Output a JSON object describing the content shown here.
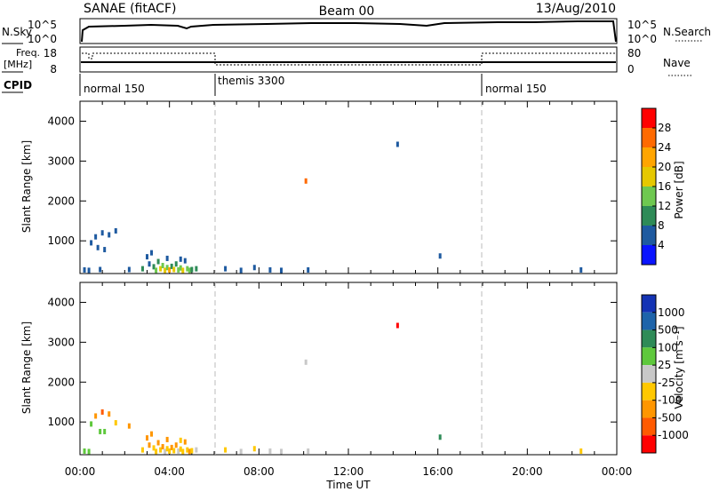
{
  "header": {
    "station": "SANAE (fitACF)",
    "beam": "Beam 00",
    "date": "13/Aug/2010"
  },
  "panels": {
    "nsky": {
      "label": "N.Sky",
      "ticks": [
        "10^5",
        "10^0"
      ],
      "right_label": "N.Search",
      "right_ticks": [
        "10^5",
        "10^0"
      ]
    },
    "freq": {
      "label_line1": "Freq.",
      "label_line2": "[MHz]",
      "ticks": [
        "18",
        "8"
      ],
      "right_label": "Nave",
      "right_ticks": [
        "80",
        "0"
      ]
    },
    "cpid": {
      "label": "CPID",
      "segments": [
        "normal 150",
        "themis 3300",
        "normal 150"
      ]
    }
  },
  "colorbars": {
    "power": {
      "label": "Power [dB]",
      "ticks": [
        "28",
        "24",
        "20",
        "16",
        "12",
        "8",
        "4"
      ],
      "colors": [
        "#ff0000",
        "#ff6a00",
        "#ffa500",
        "#e6c800",
        "#6ec850",
        "#2e8b57",
        "#1e5aa0",
        "#0a14ff"
      ]
    },
    "velocity": {
      "label": "Velocity [m s⁻¹]",
      "ticks": [
        "1000",
        "500",
        "100",
        "25",
        "-25",
        "-100",
        "-500",
        "-1000"
      ],
      "colors": [
        "#1433b4",
        "#1e64aa",
        "#2e8b57",
        "#5ec83c",
        "#c8c8c8",
        "#ffc800",
        "#ff9600",
        "#ff5a00",
        "#ff0000"
      ]
    }
  },
  "chart_data": [
    {
      "type": "heatmap",
      "name": "power",
      "ylabel": "Slant Range [km]",
      "yticks": [
        "4000",
        "3000",
        "2000",
        "1000"
      ],
      "ylim": [
        180,
        4500
      ],
      "xlim": [
        0,
        24
      ],
      "series": [
        {
          "name": "Power [dB]",
          "points": [
            {
              "x": 0.2,
              "y": 270,
              "v": 6
            },
            {
              "x": 0.4,
              "y": 260,
              "v": 6
            },
            {
              "x": 0.5,
              "y": 950,
              "v": 5
            },
            {
              "x": 0.7,
              "y": 1100,
              "v": 6
            },
            {
              "x": 0.8,
              "y": 830,
              "v": 5
            },
            {
              "x": 1.0,
              "y": 1200,
              "v": 6
            },
            {
              "x": 1.3,
              "y": 1150,
              "v": 5
            },
            {
              "x": 1.6,
              "y": 1250,
              "v": 6
            },
            {
              "x": 0.9,
              "y": 280,
              "v": 6
            },
            {
              "x": 1.1,
              "y": 780,
              "v": 6
            },
            {
              "x": 2.2,
              "y": 280,
              "v": 6
            },
            {
              "x": 2.8,
              "y": 300,
              "v": 8
            },
            {
              "x": 3.0,
              "y": 600,
              "v": 6
            },
            {
              "x": 3.1,
              "y": 420,
              "v": 7
            },
            {
              "x": 3.3,
              "y": 350,
              "v": 10
            },
            {
              "x": 3.4,
              "y": 260,
              "v": 14
            },
            {
              "x": 3.5,
              "y": 480,
              "v": 8
            },
            {
              "x": 3.6,
              "y": 300,
              "v": 16
            },
            {
              "x": 3.7,
              "y": 380,
              "v": 12
            },
            {
              "x": 3.8,
              "y": 260,
              "v": 18
            },
            {
              "x": 3.9,
              "y": 330,
              "v": 14
            },
            {
              "x": 4.0,
              "y": 270,
              "v": 20
            },
            {
              "x": 4.1,
              "y": 360,
              "v": 10
            },
            {
              "x": 4.2,
              "y": 280,
              "v": 16
            },
            {
              "x": 4.3,
              "y": 420,
              "v": 8
            },
            {
              "x": 4.4,
              "y": 270,
              "v": 14
            },
            {
              "x": 4.5,
              "y": 320,
              "v": 12
            },
            {
              "x": 4.6,
              "y": 260,
              "v": 18
            },
            {
              "x": 4.7,
              "y": 500,
              "v": 6
            },
            {
              "x": 4.8,
              "y": 300,
              "v": 14
            },
            {
              "x": 4.9,
              "y": 260,
              "v": 12
            },
            {
              "x": 5.0,
              "y": 280,
              "v": 10
            },
            {
              "x": 5.2,
              "y": 300,
              "v": 8
            },
            {
              "x": 3.2,
              "y": 700,
              "v": 6
            },
            {
              "x": 3.9,
              "y": 560,
              "v": 7
            },
            {
              "x": 4.5,
              "y": 540,
              "v": 6
            },
            {
              "x": 6.5,
              "y": 300,
              "v": 6
            },
            {
              "x": 7.2,
              "y": 260,
              "v": 6
            },
            {
              "x": 7.8,
              "y": 330,
              "v": 6
            },
            {
              "x": 8.5,
              "y": 270,
              "v": 6
            },
            {
              "x": 9.0,
              "y": 260,
              "v": 6
            },
            {
              "x": 10.1,
              "y": 2500,
              "v": 26
            },
            {
              "x": 10.2,
              "y": 270,
              "v": 6
            },
            {
              "x": 14.2,
              "y": 3420,
              "v": 5
            },
            {
              "x": 16.1,
              "y": 620,
              "v": 6
            },
            {
              "x": 22.4,
              "y": 270,
              "v": 6
            }
          ]
        }
      ]
    },
    {
      "type": "heatmap",
      "name": "velocity",
      "ylabel": "Slant Range [km]",
      "xlabel": "Time UT",
      "xticks": [
        "00:00",
        "04:00",
        "08:00",
        "12:00",
        "16:00",
        "20:00",
        "00:00"
      ],
      "yticks": [
        "4000",
        "3000",
        "2000",
        "1000"
      ],
      "ylim": [
        180,
        4500
      ],
      "xlim": [
        0,
        24
      ],
      "series": [
        {
          "name": "Velocity [m s⁻¹]",
          "points": [
            {
              "x": 0.2,
              "y": 270,
              "v": 50
            },
            {
              "x": 0.4,
              "y": 260,
              "v": 60
            },
            {
              "x": 0.5,
              "y": 950,
              "v": 60
            },
            {
              "x": 0.7,
              "y": 1150,
              "v": -300
            },
            {
              "x": 1.0,
              "y": 1250,
              "v": -600
            },
            {
              "x": 1.3,
              "y": 1200,
              "v": -300
            },
            {
              "x": 1.6,
              "y": 980,
              "v": -100
            },
            {
              "x": 0.9,
              "y": 760,
              "v": 50
            },
            {
              "x": 1.1,
              "y": 760,
              "v": 60
            },
            {
              "x": 2.2,
              "y": 900,
              "v": -200
            },
            {
              "x": 2.8,
              "y": 300,
              "v": -60
            },
            {
              "x": 3.0,
              "y": 600,
              "v": -300
            },
            {
              "x": 3.1,
              "y": 420,
              "v": -150
            },
            {
              "x": 3.3,
              "y": 350,
              "v": -80
            },
            {
              "x": 3.4,
              "y": 260,
              "v": -60
            },
            {
              "x": 3.5,
              "y": 480,
              "v": -300
            },
            {
              "x": 3.6,
              "y": 300,
              "v": -60
            },
            {
              "x": 3.7,
              "y": 380,
              "v": -150
            },
            {
              "x": 3.8,
              "y": 260,
              "v": 0
            },
            {
              "x": 3.9,
              "y": 330,
              "v": -60
            },
            {
              "x": 4.0,
              "y": 270,
              "v": -80
            },
            {
              "x": 4.1,
              "y": 360,
              "v": -300
            },
            {
              "x": 4.2,
              "y": 280,
              "v": -60
            },
            {
              "x": 4.3,
              "y": 420,
              "v": -150
            },
            {
              "x": 4.4,
              "y": 270,
              "v": 0
            },
            {
              "x": 4.5,
              "y": 320,
              "v": -60
            },
            {
              "x": 4.6,
              "y": 260,
              "v": -80
            },
            {
              "x": 4.7,
              "y": 500,
              "v": -300
            },
            {
              "x": 4.8,
              "y": 300,
              "v": -60
            },
            {
              "x": 4.9,
              "y": 260,
              "v": -150
            },
            {
              "x": 5.0,
              "y": 280,
              "v": -60
            },
            {
              "x": 5.2,
              "y": 300,
              "v": 0
            },
            {
              "x": 3.2,
              "y": 700,
              "v": -300
            },
            {
              "x": 3.9,
              "y": 560,
              "v": -150
            },
            {
              "x": 4.5,
              "y": 540,
              "v": -100
            },
            {
              "x": 6.5,
              "y": 300,
              "v": -60
            },
            {
              "x": 7.2,
              "y": 260,
              "v": 0
            },
            {
              "x": 7.8,
              "y": 330,
              "v": -60
            },
            {
              "x": 8.5,
              "y": 270,
              "v": 0
            },
            {
              "x": 9.0,
              "y": 260,
              "v": 0
            },
            {
              "x": 10.1,
              "y": 2500,
              "v": 0
            },
            {
              "x": 10.2,
              "y": 270,
              "v": 0
            },
            {
              "x": 14.2,
              "y": 3420,
              "v": -1200
            },
            {
              "x": 16.1,
              "y": 620,
              "v": 300
            },
            {
              "x": 22.4,
              "y": 270,
              "v": -60
            }
          ]
        }
      ]
    }
  ]
}
